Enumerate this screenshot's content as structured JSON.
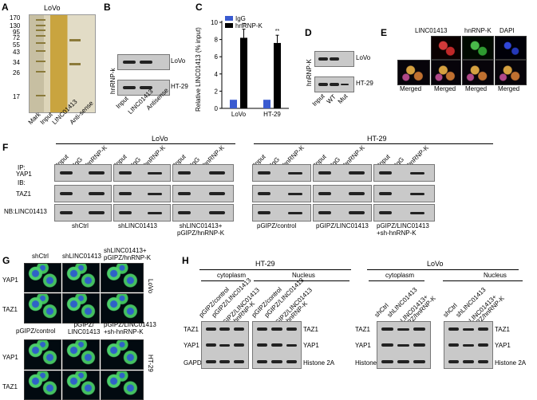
{
  "panels": {
    "A": {
      "label": "A",
      "title": "LoVo",
      "ladder": [
        "170",
        "130",
        "95",
        "72",
        "55",
        "43",
        "34",
        "26",
        "17"
      ],
      "lanes": [
        "Mark",
        "Input",
        "LINC01413",
        "Anti-sense"
      ]
    },
    "B": {
      "label": "B",
      "ylabel": "hnRNP-k",
      "rows": [
        "LoVo",
        "HT-29"
      ],
      "lanes": [
        "Input",
        "LINC01413",
        "Antisense"
      ]
    },
    "C": {
      "label": "C",
      "stars": [
        "**",
        "**"
      ]
    },
    "D": {
      "label": "D",
      "ylabel": "hnRNP-K",
      "rows": [
        "LoVo",
        "HT-29"
      ],
      "lanes": [
        "Input",
        "WT",
        "Mut"
      ]
    },
    "E": {
      "label": "E",
      "top": [
        "LINC01413",
        "hnRNP-K",
        "DAPI"
      ],
      "bottom": [
        "Merged",
        "Merged",
        "Merged",
        "Merged"
      ]
    },
    "F": {
      "label": "F",
      "lovo": "LoVo",
      "ht29": "HT-29",
      "ip": "IP:",
      "ib": "IB:",
      "rows": [
        "YAP1",
        "TAZ1",
        "NB:LINC01413"
      ],
      "lanes": [
        "Input",
        "IgG",
        "hnRNP-K"
      ],
      "groups_lovo": [
        "shCtrl",
        "shLINC01413",
        "shLINC01413+\npGIPZ/hnRNP-K"
      ],
      "groups_ht29": [
        "pGIPZ/control",
        "pGIPZ/LINC01413",
        "pGIPZ/LINC01413\n+sh-hnRNP-K"
      ]
    },
    "G": {
      "label": "G",
      "top_cols": [
        "shCtrl",
        "shLINC01413",
        "shLINC01413+\npGIPZ/hnRNP-K"
      ],
      "bottom_cols": [
        "pGIPZ/control",
        "pGIPZ/\nLINC01413",
        "pGIPZ/LINC01413\n+sh-hnRNP-K"
      ],
      "rows": [
        "YAP1",
        "TAZ1"
      ],
      "cell_top": "LoVo",
      "cell_bottom": "HT-29"
    },
    "H": {
      "label": "H",
      "ht29": "HT-29",
      "lovo": "LoVo",
      "cytoplasm": "cytoplasm",
      "nucleus": "Nucleus",
      "lanes_ht29": [
        "pGIPZ/control",
        "pGIPZ/LINC01413",
        "pGIPZ/LINC01413\n+sh-hnRNP-K"
      ],
      "lanes_lovo": [
        "shCtrl",
        "shLINC01413",
        "shLINC01413+\npGIPZ/hnRNP-K"
      ],
      "rows_left": [
        "TAZ1",
        "YAP1",
        "GAPDH"
      ],
      "rows_right": [
        "TAZ1",
        "YAP1",
        "Histone 2A"
      ]
    }
  },
  "chart_data": {
    "type": "bar",
    "title": "",
    "xlabel": "",
    "ylabel": "Relative LINC01413 (% input)",
    "categories": [
      "LoVo",
      "HT-29"
    ],
    "series": [
      {
        "name": "IgG",
        "values": [
          1.0,
          1.0
        ],
        "color": "#3a5bd0"
      },
      {
        "name": "hnRNP-K",
        "values": [
          8.2,
          7.6
        ],
        "errors": [
          1.0,
          0.9
        ],
        "color": "#000000"
      }
    ],
    "ylim": [
      0,
      10
    ],
    "yticks": [
      0,
      2,
      4,
      6,
      8,
      10
    ],
    "annotations": [
      "**",
      "**"
    ],
    "legend": "top-left"
  }
}
